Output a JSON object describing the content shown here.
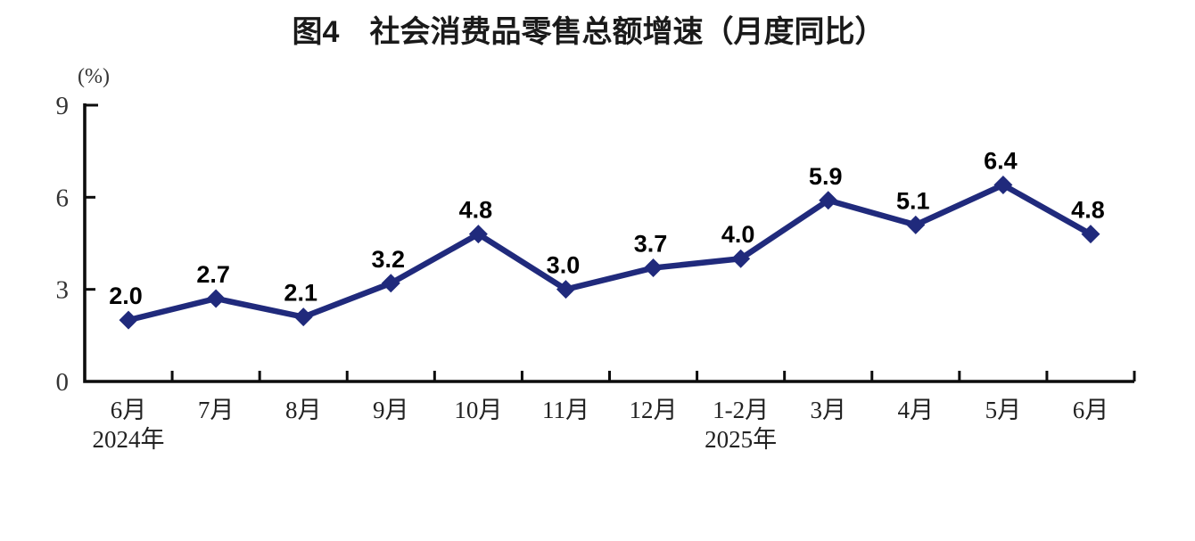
{
  "chart_data": {
    "type": "line",
    "title": "图4　社会消费品零售总额增速（月度同比）",
    "xlabel": "",
    "ylabel": "(%)",
    "categories": [
      "6月",
      "7月",
      "8月",
      "9月",
      "10月",
      "11月",
      "12月",
      "1-2月",
      "3月",
      "4月",
      "5月",
      "6月"
    ],
    "category_year_labels": [
      "2024年",
      "",
      "",
      "",
      "",
      "",
      "",
      "2025年",
      "",
      "",
      "",
      ""
    ],
    "values": [
      2.0,
      2.7,
      2.1,
      3.2,
      4.8,
      3.0,
      3.7,
      4.0,
      5.9,
      5.1,
      6.4,
      4.8
    ],
    "data_labels": [
      "2.0",
      "2.7",
      "2.1",
      "3.2",
      "4.8",
      "3.0",
      "3.7",
      "4.0",
      "5.9",
      "5.1",
      "6.4",
      "4.8"
    ],
    "ylim": [
      0,
      9
    ],
    "yticks": [
      0,
      3,
      6,
      9
    ],
    "grid": false,
    "legend": "none",
    "marker": "diamond",
    "line_color": "#202A7C",
    "marker_color": "#202A7C",
    "axis_color": "#0d0d0d",
    "data_label_color": "#000000"
  }
}
